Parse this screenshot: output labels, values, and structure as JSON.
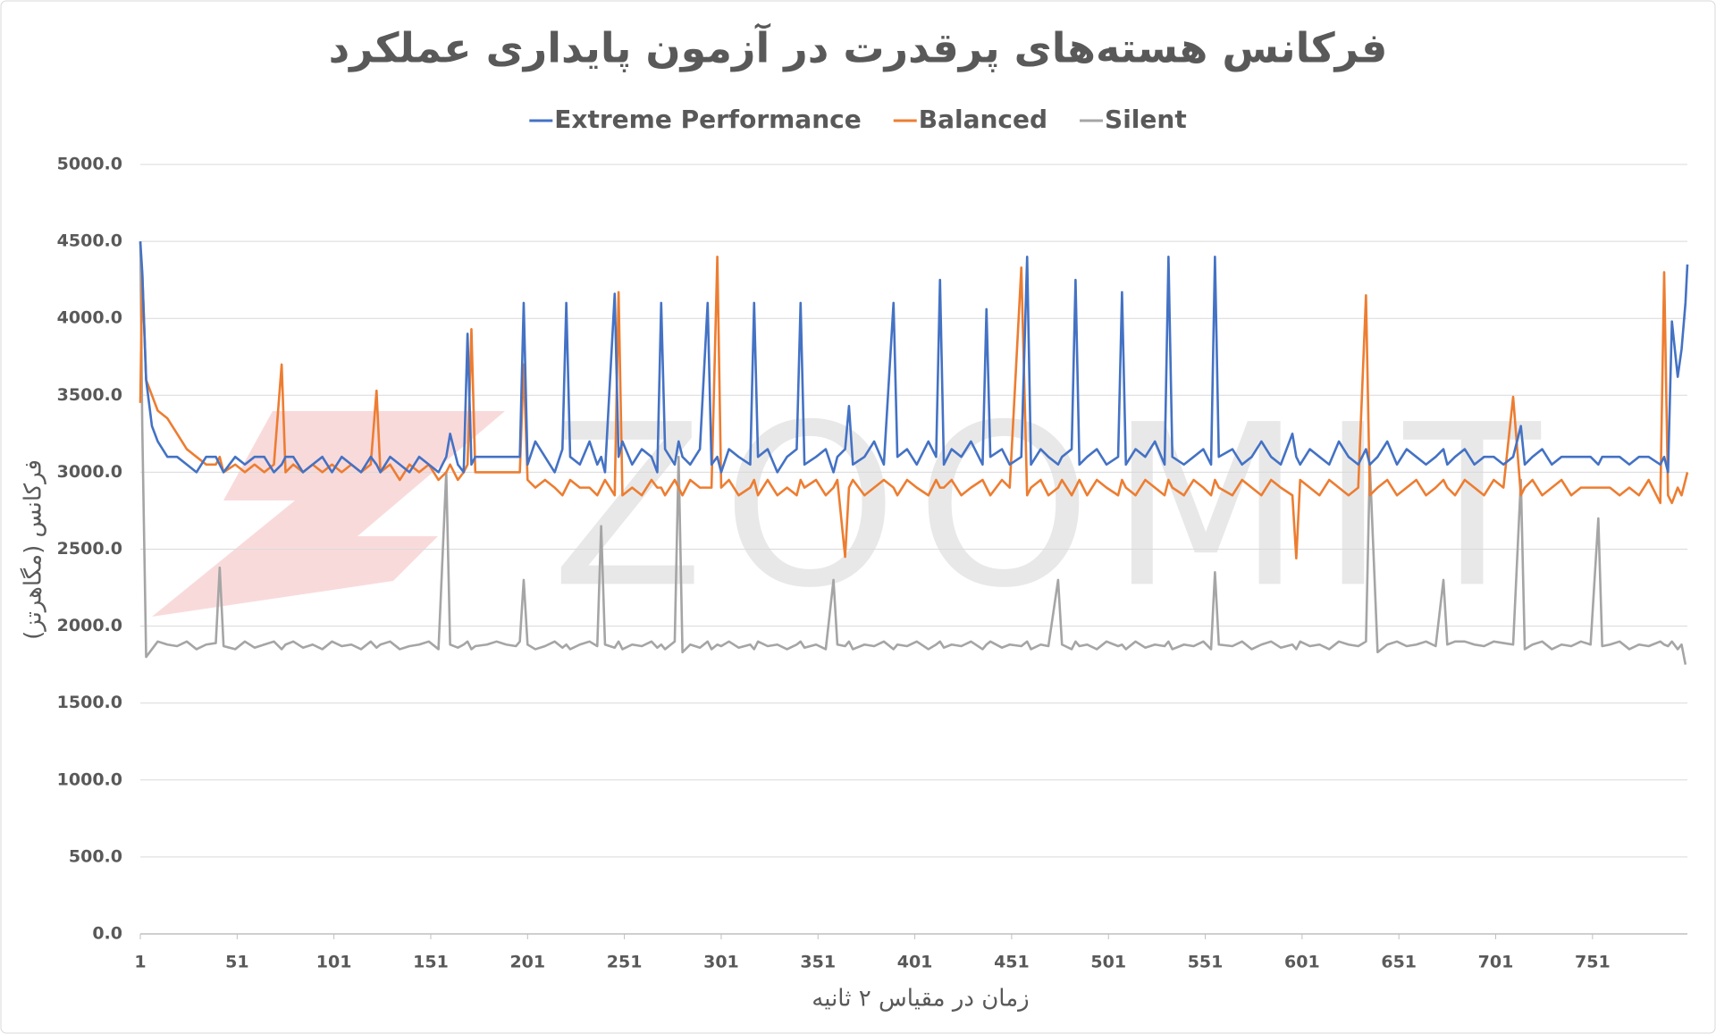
{
  "chart_data": {
    "type": "line",
    "title": "فرکانس هسته‌های پرقدرت در آزمون پایداری عملکرد",
    "x_label": "زمان در مقیاس ۲ ثانیه",
    "y_label": "فرکانس (مگاهرتز)",
    "watermark": "ZOOMIT",
    "grid": true,
    "legend": "top",
    "xlim": [
      1,
      800
    ],
    "xticks": [
      1,
      51,
      101,
      151,
      201,
      251,
      301,
      351,
      401,
      451,
      501,
      551,
      601,
      651,
      701,
      751
    ],
    "ylim": [
      0,
      5000
    ],
    "yticks": [
      {
        "value": 0,
        "label": "0.0"
      },
      {
        "value": 500,
        "label": "500.0"
      },
      {
        "value": 1000,
        "label": "1000.0"
      },
      {
        "value": 1500,
        "label": "1500.0"
      },
      {
        "value": 2000,
        "label": "2000.0"
      },
      {
        "value": 2500,
        "label": "2500.0"
      },
      {
        "value": 3000,
        "label": "3000.0"
      },
      {
        "value": 3500,
        "label": "3500.0"
      },
      {
        "value": 4000,
        "label": "4000.0"
      },
      {
        "value": 4500,
        "label": "4500.0"
      },
      {
        "value": 5000,
        "label": "5000.0"
      }
    ],
    "x": [
      1,
      2,
      4,
      7,
      10,
      15,
      20,
      25,
      30,
      35,
      40,
      42,
      44,
      50,
      55,
      60,
      65,
      70,
      74,
      76,
      80,
      85,
      90,
      95,
      100,
      105,
      110,
      115,
      120,
      123,
      125,
      130,
      135,
      140,
      145,
      150,
      155,
      159,
      161,
      165,
      168,
      170,
      172,
      174,
      180,
      185,
      190,
      195,
      197,
      199,
      201,
      205,
      210,
      215,
      219,
      221,
      223,
      228,
      233,
      237,
      239,
      241,
      246,
      248,
      250,
      255,
      260,
      265,
      268,
      270,
      272,
      277,
      279,
      281,
      285,
      290,
      294,
      296,
      299,
      301,
      305,
      310,
      316,
      318,
      320,
      325,
      330,
      335,
      340,
      342,
      344,
      350,
      355,
      359,
      361,
      365,
      367,
      369,
      375,
      380,
      385,
      390,
      392,
      397,
      402,
      408,
      412,
      414,
      416,
      420,
      425,
      430,
      436,
      438,
      440,
      446,
      450,
      456,
      459,
      461,
      466,
      470,
      475,
      477,
      482,
      484,
      486,
      490,
      495,
      500,
      506,
      508,
      510,
      515,
      520,
      525,
      530,
      532,
      534,
      540,
      545,
      550,
      554,
      556,
      558,
      565,
      570,
      575,
      580,
      585,
      590,
      596,
      598,
      600,
      605,
      610,
      615,
      620,
      625,
      630,
      634,
      636,
      640,
      645,
      650,
      655,
      660,
      665,
      670,
      674,
      676,
      680,
      685,
      690,
      695,
      700,
      705,
      710,
      714,
      716,
      720,
      725,
      730,
      735,
      740,
      745,
      750,
      754,
      756,
      760,
      765,
      770,
      775,
      780,
      786,
      788,
      790,
      792,
      795,
      797,
      799,
      800
    ],
    "series": [
      {
        "name": "Extreme Performance",
        "color": "#4472c4",
        "values": [
          4500,
          4300,
          3600,
          3300,
          3200,
          3100,
          3100,
          3050,
          3000,
          3100,
          3100,
          3050,
          3000,
          3100,
          3050,
          3100,
          3100,
          3000,
          3050,
          3100,
          3100,
          3000,
          3050,
          3100,
          3000,
          3100,
          3050,
          3000,
          3100,
          3050,
          3000,
          3100,
          3050,
          3000,
          3100,
          3050,
          3000,
          3100,
          3250,
          3050,
          3000,
          3900,
          3050,
          3100,
          3100,
          3100,
          3100,
          3100,
          3100,
          4100,
          3050,
          3200,
          3100,
          3000,
          3150,
          4100,
          3100,
          3050,
          3200,
          3050,
          3100,
          3000,
          4160,
          3100,
          3200,
          3050,
          3150,
          3100,
          3000,
          4100,
          3150,
          3050,
          3200,
          3100,
          3050,
          3150,
          4100,
          3050,
          3100,
          3000,
          3150,
          3100,
          3050,
          4100,
          3100,
          3150,
          3000,
          3100,
          3150,
          4100,
          3050,
          3100,
          3150,
          3000,
          3100,
          3150,
          3430,
          3050,
          3100,
          3200,
          3050,
          4100,
          3100,
          3150,
          3050,
          3200,
          3100,
          4250,
          3050,
          3150,
          3100,
          3200,
          3050,
          4060,
          3100,
          3150,
          3050,
          3100,
          4400,
          3050,
          3150,
          3100,
          3050,
          3100,
          3150,
          4250,
          3050,
          3100,
          3150,
          3050,
          3100,
          4170,
          3050,
          3150,
          3100,
          3200,
          3050,
          4400,
          3100,
          3050,
          3100,
          3150,
          3050,
          4400,
          3100,
          3150,
          3050,
          3100,
          3200,
          3100,
          3050,
          3250,
          3100,
          3050,
          3150,
          3100,
          3050,
          3200,
          3100,
          3050,
          3150,
          3050,
          3100,
          3200,
          3050,
          3150,
          3100,
          3050,
          3100,
          3150,
          3050,
          3100,
          3150,
          3050,
          3100,
          3100,
          3050,
          3100,
          3300,
          3050,
          3100,
          3150,
          3050,
          3100,
          3100,
          3100,
          3100,
          3050,
          3100,
          3100,
          3100,
          3050,
          3100,
          3100,
          3050,
          3100,
          3000,
          3980,
          3620,
          3800,
          4100,
          4350
        ]
      },
      {
        "name": "Balanced",
        "color": "#ed7d31",
        "values": [
          3450,
          4300,
          3600,
          3500,
          3400,
          3350,
          3250,
          3150,
          3100,
          3050,
          3050,
          3100,
          3000,
          3050,
          3000,
          3050,
          3000,
          3050,
          3700,
          3000,
          3050,
          3000,
          3050,
          3000,
          3050,
          3000,
          3050,
          3000,
          3050,
          3530,
          3000,
          3050,
          2950,
          3050,
          3000,
          3050,
          2950,
          3000,
          3050,
          2950,
          3000,
          3050,
          3930,
          3000,
          3000,
          3000,
          3000,
          3000,
          3000,
          3700,
          2950,
          2900,
          2950,
          2900,
          2850,
          2900,
          2950,
          2900,
          2900,
          2850,
          2900,
          2950,
          2850,
          4170,
          2850,
          2900,
          2850,
          2950,
          2900,
          2900,
          2850,
          2950,
          2900,
          2850,
          2950,
          2900,
          2900,
          2900,
          4400,
          2900,
          2950,
          2850,
          2900,
          2950,
          2850,
          2950,
          2850,
          2900,
          2850,
          2950,
          2900,
          2950,
          2850,
          2900,
          2950,
          2450,
          2900,
          2950,
          2850,
          2900,
          2950,
          2900,
          2850,
          2950,
          2900,
          2850,
          2950,
          2900,
          2900,
          2950,
          2850,
          2900,
          2950,
          2900,
          2850,
          2950,
          2900,
          4330,
          2850,
          2900,
          2950,
          2850,
          2900,
          2950,
          2850,
          2900,
          2950,
          2850,
          2950,
          2900,
          2850,
          2950,
          2900,
          2850,
          2950,
          2900,
          2850,
          2950,
          2900,
          2850,
          2950,
          2900,
          2850,
          2950,
          2900,
          2850,
          2950,
          2900,
          2850,
          2950,
          2900,
          2850,
          2440,
          2950,
          2900,
          2850,
          2950,
          2900,
          2850,
          2900,
          4150,
          2850,
          2900,
          2950,
          2850,
          2900,
          2950,
          2850,
          2900,
          2950,
          2900,
          2850,
          2950,
          2900,
          2850,
          2950,
          2900,
          3490,
          2850,
          2900,
          2950,
          2850,
          2900,
          2950,
          2850,
          2900,
          2900,
          2900,
          2900,
          2900,
          2850,
          2900,
          2850,
          2950,
          2800,
          4300,
          2850,
          2800,
          2900,
          2850,
          2950,
          3000
        ]
      },
      {
        "name": "Silent",
        "color": "#a5a5a5",
        "values": [
          4500,
          3300,
          1800,
          1850,
          1900,
          1880,
          1870,
          1900,
          1850,
          1880,
          1890,
          2380,
          1870,
          1850,
          1900,
          1860,
          1880,
          1900,
          1850,
          1880,
          1900,
          1860,
          1880,
          1850,
          1900,
          1870,
          1880,
          1850,
          1900,
          1860,
          1880,
          1900,
          1850,
          1870,
          1880,
          1900,
          1850,
          3000,
          1880,
          1860,
          1880,
          1900,
          1850,
          1870,
          1880,
          1900,
          1880,
          1870,
          1900,
          2300,
          1880,
          1850,
          1870,
          1900,
          1860,
          1880,
          1850,
          1880,
          1900,
          1870,
          2650,
          1880,
          1860,
          1900,
          1850,
          1880,
          1870,
          1900,
          1860,
          1880,
          1850,
          1900,
          3100,
          1830,
          1880,
          1860,
          1900,
          1850,
          1880,
          1870,
          1900,
          1860,
          1880,
          1850,
          1900,
          1870,
          1880,
          1850,
          1880,
          1900,
          1860,
          1880,
          1850,
          2300,
          1880,
          1870,
          1900,
          1850,
          1880,
          1870,
          1900,
          1850,
          1880,
          1870,
          1900,
          1850,
          1880,
          1900,
          1860,
          1880,
          1870,
          1900,
          1850,
          1880,
          1900,
          1860,
          1880,
          1870,
          1900,
          1850,
          1880,
          1870,
          2300,
          1880,
          1850,
          1900,
          1870,
          1880,
          1850,
          1900,
          1870,
          1880,
          1850,
          1900,
          1860,
          1880,
          1870,
          1900,
          1850,
          1880,
          1870,
          1900,
          1850,
          2350,
          1880,
          1870,
          1900,
          1850,
          1880,
          1900,
          1860,
          1880,
          1850,
          1900,
          1870,
          1880,
          1850,
          1900,
          1880,
          1870,
          1900,
          3050,
          1830,
          1880,
          1900,
          1870,
          1880,
          1900,
          1870,
          2300,
          1880,
          1900,
          1900,
          1880,
          1870,
          1900,
          1890,
          1880,
          2950,
          1850,
          1880,
          1900,
          1850,
          1880,
          1870,
          1900,
          1880,
          2700,
          1870,
          1880,
          1900,
          1850,
          1880,
          1870,
          1900,
          1880,
          1870,
          1900,
          1850,
          1880,
          1750,
          null
        ]
      }
    ]
  }
}
